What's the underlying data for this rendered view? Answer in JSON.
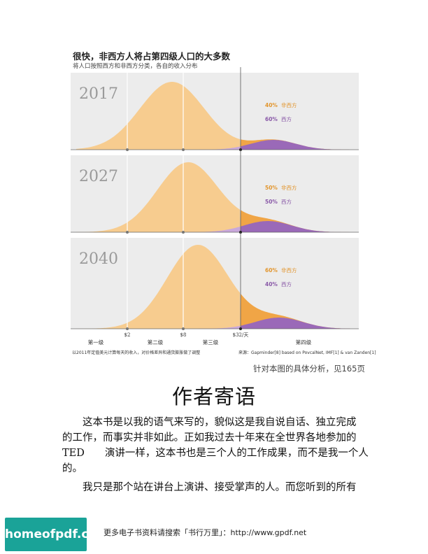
{
  "figure": {
    "title": "很快，非西方人将占第四级人口的大多数",
    "subtitle": "将人口按照西方和非西方分类，各自的收入分布",
    "colors": {
      "non_western": "#f7cc8f",
      "non_western_dark": "#f0a546",
      "western": "#c9a8db",
      "western_dark": "#9a69b8"
    },
    "panels": [
      {
        "year": "2017",
        "non_western_pct": "40%",
        "non_western_label": "非西方",
        "western_pct": "60%",
        "western_label": "西方"
      },
      {
        "year": "2027",
        "non_western_pct": "50%",
        "non_western_label": "非西方",
        "western_pct": "50%",
        "western_label": "西方"
      },
      {
        "year": "2040",
        "non_western_pct": "60%",
        "non_western_label": "非西方",
        "western_pct": "40%",
        "western_label": "西方"
      }
    ],
    "ticks": [
      "$2",
      "$8",
      "$32/天"
    ],
    "levels": [
      "第一级",
      "第二级",
      "第三级",
      "第四级"
    ],
    "note_left": "以2011年定值美元计算每天的收入，对价格差异和通货膨胀做了调整",
    "note_right": "来源：Gapminder[8] based on PovcalNet, IMF[1] & van Zanden[1]"
  },
  "caption": "针对本图的具体分析，见165页",
  "heading": "作者寄语",
  "paragraph1": [
    "这本书是以我的语气来写的，貌似这是我自说自话、独立完成",
    "的工作，而事实并非如此。正如我过去十年来在全世界各地参加的",
    "TED　　演讲一样，这本书也是三个人的工作成果，而不是我一个人",
    "的。"
  ],
  "paragraph2": [
    "我只是那个站在讲台上演讲、接受掌声的人。而您听到的所有"
  ],
  "logo": "homeofpdf.com",
  "footer": "更多电子书资料请搜索「书行万里」：http://www.gpdf.net"
}
